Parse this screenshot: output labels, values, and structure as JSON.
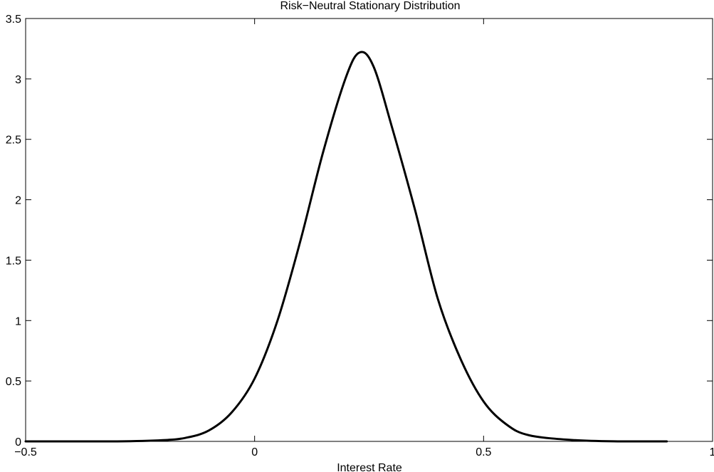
{
  "chart_data": {
    "type": "line",
    "title": "Risk−Neutral Stationary Distribution",
    "xlabel": "Interest Rate",
    "ylabel": "",
    "xlim": [
      -0.5,
      1
    ],
    "ylim": [
      0,
      3.5
    ],
    "x_ticks": [
      -0.5,
      0,
      0.5,
      1
    ],
    "y_ticks": [
      0,
      0.5,
      1,
      1.5,
      2,
      2.5,
      3,
      3.5
    ],
    "x_tick_labels": [
      "−0.5",
      "0",
      "0.5",
      "1"
    ],
    "y_tick_labels": [
      "0",
      "0.5",
      "1",
      "1.5",
      "2",
      "2.5",
      "3",
      "3.5"
    ],
    "grid": false,
    "line_color": "#000000",
    "series": [
      {
        "x": [
          -0.5,
          -0.3,
          -0.2,
          -0.15,
          -0.1,
          -0.05,
          0.0,
          0.05,
          0.1,
          0.15,
          0.2,
          0.23,
          0.26,
          0.3,
          0.35,
          0.4,
          0.45,
          0.5,
          0.55,
          0.6,
          0.7,
          0.8,
          0.9
        ],
        "y": [
          0.0,
          0.0,
          0.01,
          0.03,
          0.09,
          0.24,
          0.52,
          1.0,
          1.66,
          2.4,
          3.02,
          3.22,
          3.1,
          2.6,
          1.92,
          1.18,
          0.68,
          0.33,
          0.14,
          0.05,
          0.01,
          0.0,
          0.0
        ]
      }
    ]
  }
}
